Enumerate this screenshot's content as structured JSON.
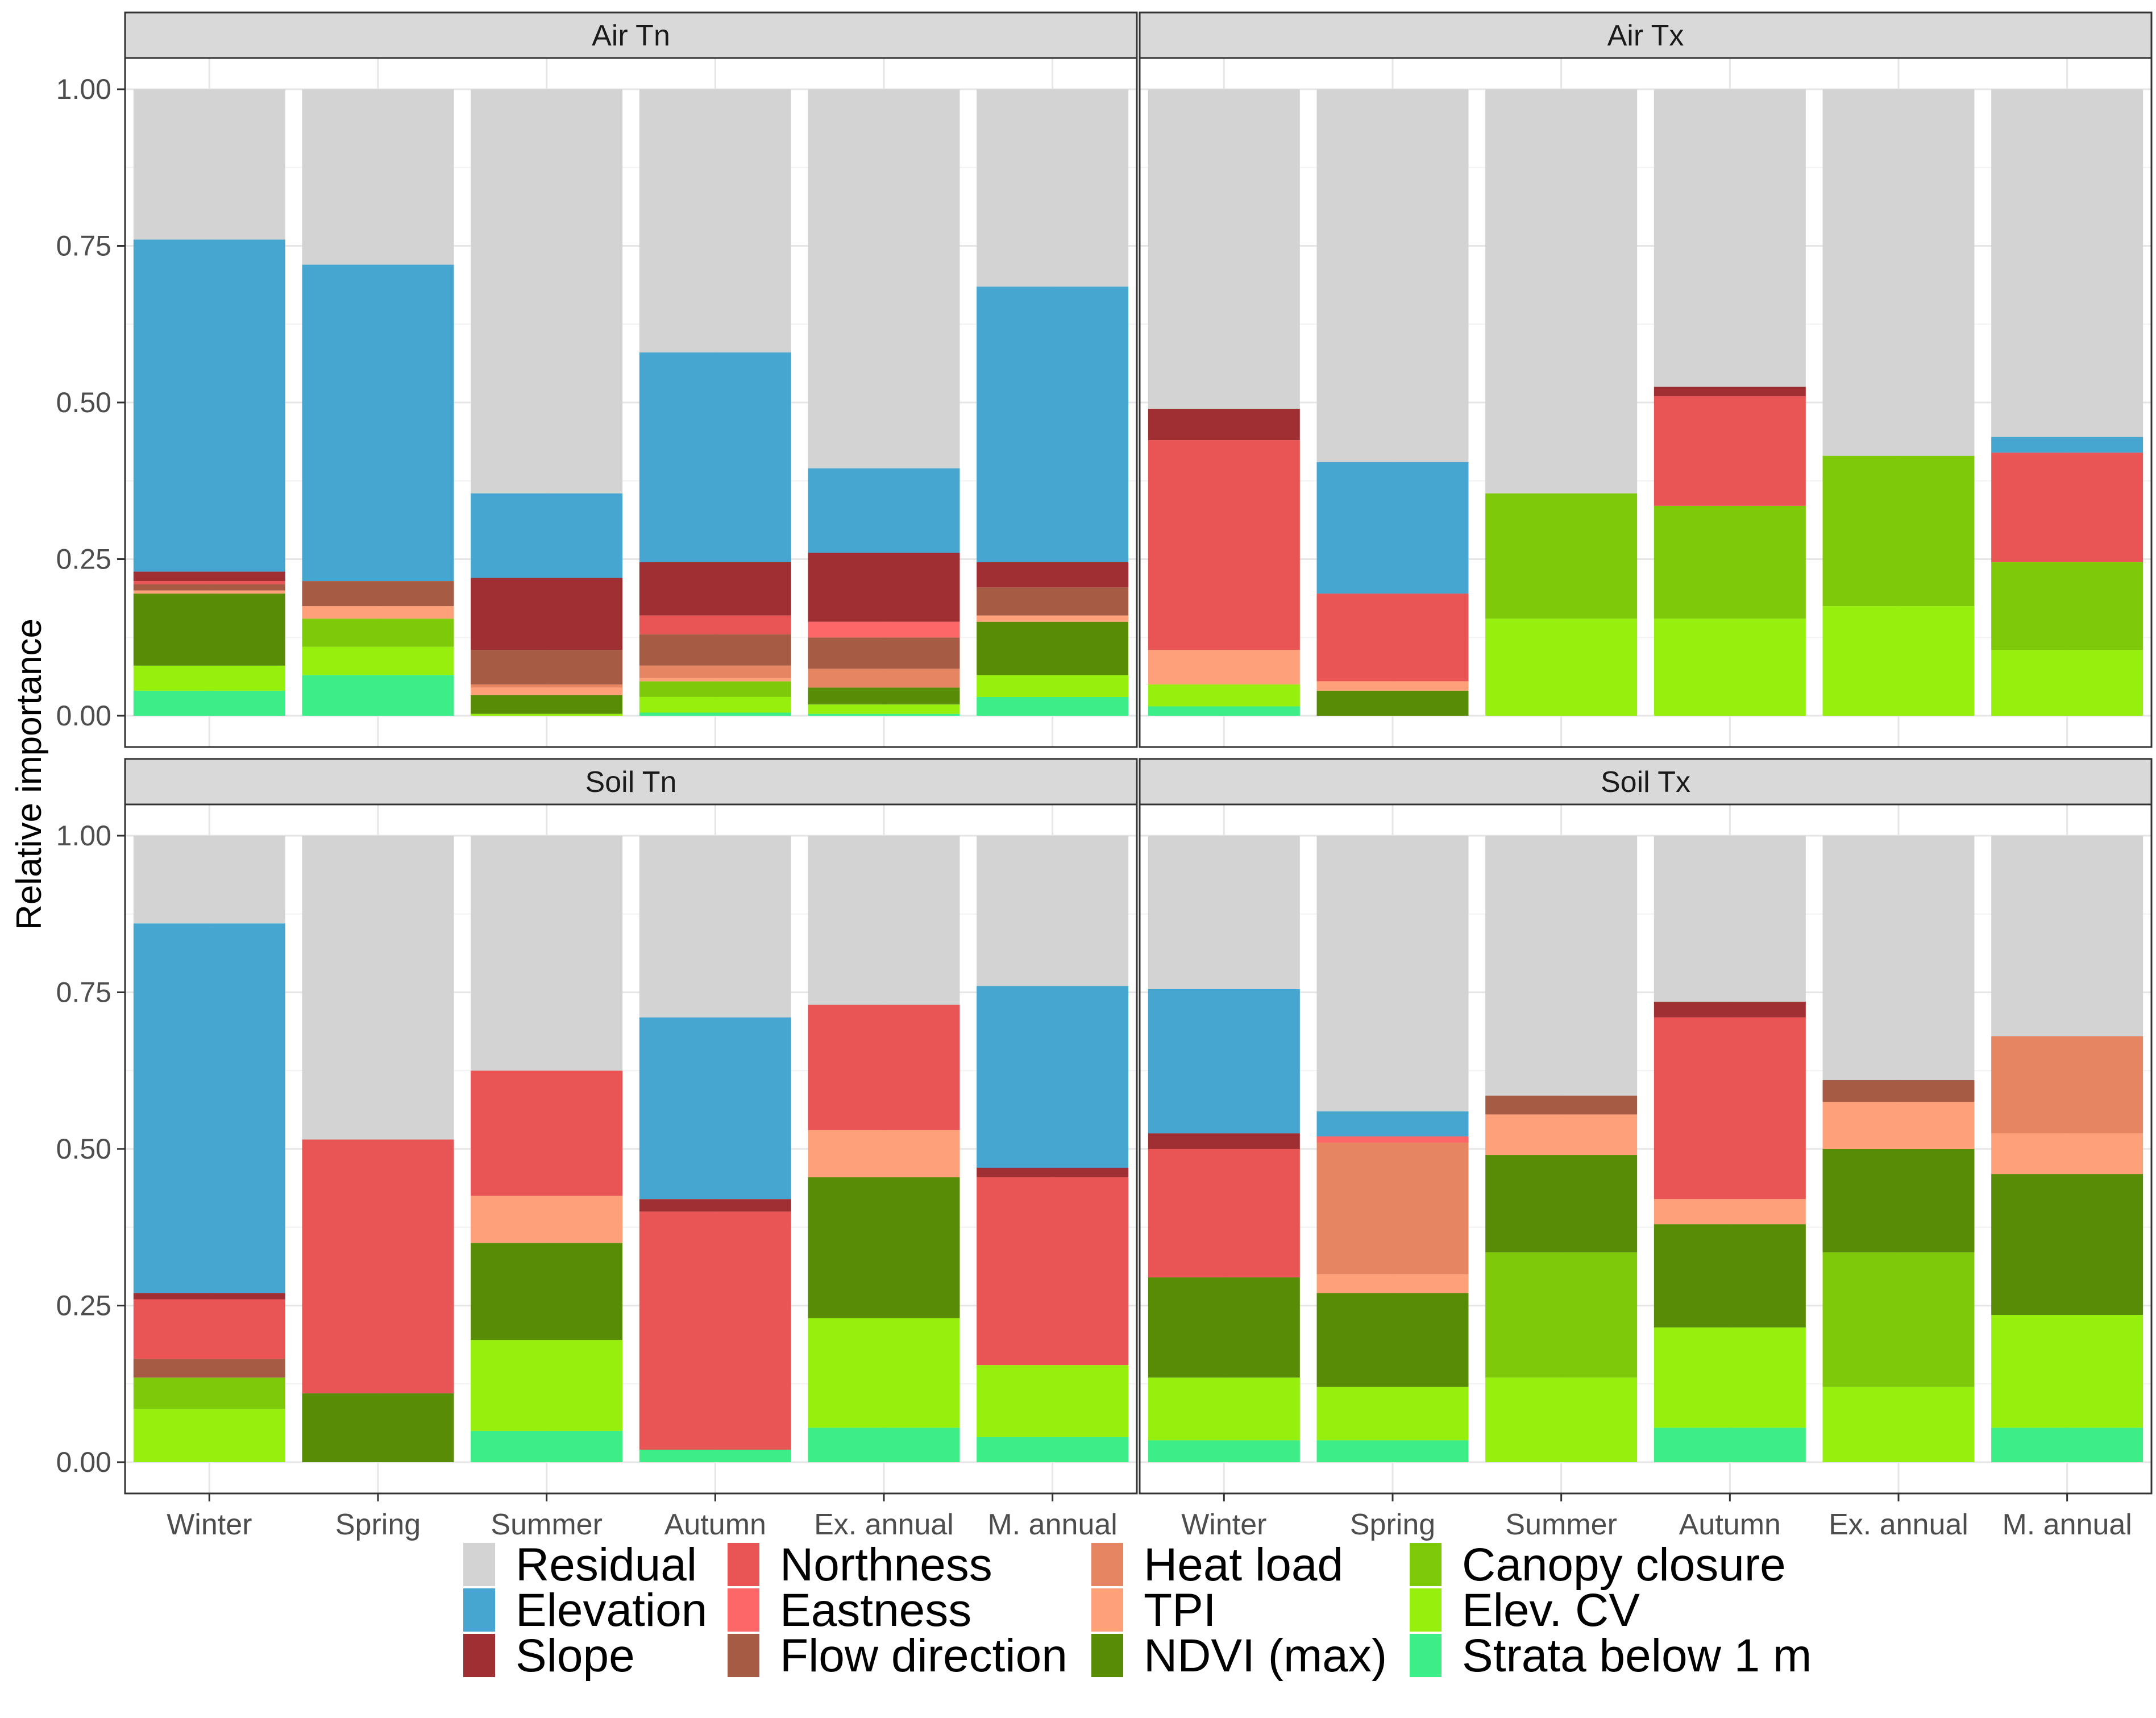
{
  "chart_data": {
    "type": "stacked-bar",
    "ylabel": "Relative importance",
    "ylim": [
      0,
      1
    ],
    "yticks": [
      "0.00",
      "0.25",
      "0.50",
      "0.75",
      "1.00"
    ],
    "categories": [
      "Winter",
      "Spring",
      "Summer",
      "Autumn",
      "Ex. annual",
      "M. annual"
    ],
    "predictors": [
      {
        "name": "Residual",
        "color": "#d3d3d3"
      },
      {
        "name": "Elevation",
        "color": "#47a6d0"
      },
      {
        "name": "Slope",
        "color": "#a02f34"
      },
      {
        "name": "Northness",
        "color": "#e95454"
      },
      {
        "name": "Eastness",
        "color": "#fe6767"
      },
      {
        "name": "Flow direction",
        "color": "#a65b44"
      },
      {
        "name": "Heat load",
        "color": "#e58561"
      },
      {
        "name": "TPI",
        "color": "#fea07a"
      },
      {
        "name": "NDVI (max)",
        "color": "#588c06"
      },
      {
        "name": "Canopy closure",
        "color": "#7ec90a"
      },
      {
        "name": "Elev. CV",
        "color": "#97ef0e"
      },
      {
        "name": "Strata below 1 m",
        "color": "#3ded88"
      }
    ],
    "stack_order": [
      "Strata below 1 m",
      "Elev. CV",
      "Canopy closure",
      "NDVI (max)",
      "TPI",
      "Heat load",
      "Flow direction",
      "Eastness",
      "Northness",
      "Slope",
      "Elevation",
      "Residual"
    ],
    "panels": [
      {
        "title": "Air Tn",
        "bars": [
          {
            "Strata below 1 m": 0.04,
            "Elev. CV": 0.04,
            "Canopy closure": 0,
            "NDVI (max)": 0.115,
            "TPI": 0.005,
            "Heat load": 0,
            "Flow direction": 0.01,
            "Eastness": 0,
            "Northness": 0.005,
            "Slope": 0.015,
            "Elevation": 0.53,
            "Residual": 0.24
          },
          {
            "Strata below 1 m": 0.065,
            "Elev. CV": 0.045,
            "Canopy closure": 0.045,
            "NDVI (max)": 0,
            "TPI": 0.02,
            "Heat load": 0,
            "Flow direction": 0.04,
            "Eastness": 0,
            "Northness": 0,
            "Slope": 0,
            "Elevation": 0.505,
            "Residual": 0.28
          },
          {
            "Strata below 1 m": 0,
            "Elev. CV": 0.003,
            "Canopy closure": 0,
            "NDVI (max)": 0.03,
            "TPI": 0.012,
            "Heat load": 0.005,
            "Flow direction": 0.055,
            "Eastness": 0,
            "Northness": 0,
            "Slope": 0.115,
            "Elevation": 0.135,
            "Residual": 0.645
          },
          {
            "Strata below 1 m": 0.005,
            "Elev. CV": 0.025,
            "Canopy closure": 0.025,
            "NDVI (max)": 0,
            "TPI": 0.005,
            "Heat load": 0.02,
            "Flow direction": 0.05,
            "Eastness": 0,
            "Northness": 0.03,
            "Slope": 0.085,
            "Elevation": 0.335,
            "Residual": 0.42
          },
          {
            "Strata below 1 m": 0.003,
            "Elev. CV": 0.015,
            "Canopy closure": 0,
            "NDVI (max)": 0.027,
            "TPI": 0,
            "Heat load": 0.03,
            "Flow direction": 0.05,
            "Eastness": 0.025,
            "Northness": 0,
            "Slope": 0.11,
            "Elevation": 0.135,
            "Residual": 0.605
          },
          {
            "Strata below 1 m": 0.03,
            "Elev. CV": 0.035,
            "Canopy closure": 0,
            "NDVI (max)": 0.085,
            "TPI": 0.01,
            "Heat load": 0,
            "Flow direction": 0.045,
            "Eastness": 0,
            "Northness": 0,
            "Slope": 0.04,
            "Elevation": 0.44,
            "Residual": 0.315
          }
        ]
      },
      {
        "title": "Air Tx",
        "bars": [
          {
            "Strata below 1 m": 0.015,
            "Elev. CV": 0.035,
            "Canopy closure": 0,
            "NDVI (max)": 0,
            "TPI": 0.055,
            "Heat load": 0,
            "Flow direction": 0,
            "Eastness": 0,
            "Northness": 0.335,
            "Slope": 0.05,
            "Elevation": 0,
            "Residual": 0.51
          },
          {
            "Strata below 1 m": 0,
            "Elev. CV": 0,
            "Canopy closure": 0,
            "NDVI (max)": 0.04,
            "TPI": 0.015,
            "Heat load": 0,
            "Flow direction": 0,
            "Eastness": 0,
            "Northness": 0.14,
            "Slope": 0,
            "Elevation": 0.21,
            "Residual": 0.595
          },
          {
            "Strata below 1 m": 0,
            "Elev. CV": 0.155,
            "Canopy closure": 0.2,
            "NDVI (max)": 0,
            "TPI": 0,
            "Heat load": 0,
            "Flow direction": 0,
            "Eastness": 0,
            "Northness": 0,
            "Slope": 0,
            "Elevation": 0,
            "Residual": 0.645
          },
          {
            "Strata below 1 m": 0,
            "Elev. CV": 0.155,
            "Canopy closure": 0.18,
            "NDVI (max)": 0,
            "TPI": 0,
            "Heat load": 0,
            "Flow direction": 0,
            "Eastness": 0,
            "Northness": 0.175,
            "Slope": 0.015,
            "Elevation": 0,
            "Residual": 0.475
          },
          {
            "Strata below 1 m": 0,
            "Elev. CV": 0.175,
            "Canopy closure": 0.24,
            "NDVI (max)": 0,
            "TPI": 0,
            "Heat load": 0,
            "Flow direction": 0,
            "Eastness": 0,
            "Northness": 0,
            "Slope": 0,
            "Elevation": 0,
            "Residual": 0.585
          },
          {
            "Strata below 1 m": 0,
            "Elev. CV": 0.105,
            "Canopy closure": 0.14,
            "NDVI (max)": 0,
            "TPI": 0,
            "Heat load": 0,
            "Flow direction": 0,
            "Eastness": 0,
            "Northness": 0.175,
            "Slope": 0,
            "Elevation": 0.025,
            "Residual": 0.555
          }
        ]
      },
      {
        "title": "Soil Tn",
        "bars": [
          {
            "Strata below 1 m": 0,
            "Elev. CV": 0.085,
            "Canopy closure": 0.05,
            "NDVI (max)": 0,
            "TPI": 0,
            "Heat load": 0,
            "Flow direction": 0.03,
            "Eastness": 0,
            "Northness": 0.095,
            "Slope": 0.01,
            "Elevation": 0.59,
            "Residual": 0.14
          },
          {
            "Strata below 1 m": 0,
            "Elev. CV": 0,
            "Canopy closure": 0,
            "NDVI (max)": 0.11,
            "TPI": 0,
            "Heat load": 0,
            "Flow direction": 0,
            "Eastness": 0,
            "Northness": 0.405,
            "Slope": 0,
            "Elevation": 0,
            "Residual": 0.485
          },
          {
            "Strata below 1 m": 0.05,
            "Elev. CV": 0.145,
            "Canopy closure": 0,
            "NDVI (max)": 0.155,
            "TPI": 0.075,
            "Heat load": 0,
            "Flow direction": 0,
            "Eastness": 0,
            "Northness": 0.2,
            "Slope": 0,
            "Elevation": 0,
            "Residual": 0.375
          },
          {
            "Strata below 1 m": 0.02,
            "Elev. CV": 0,
            "Canopy closure": 0,
            "NDVI (max)": 0,
            "TPI": 0,
            "Heat load": 0,
            "Flow direction": 0,
            "Eastness": 0,
            "Northness": 0.38,
            "Slope": 0.02,
            "Elevation": 0.29,
            "Residual": 0.29
          },
          {
            "Strata below 1 m": 0.055,
            "Elev. CV": 0.175,
            "Canopy closure": 0,
            "NDVI (max)": 0.225,
            "TPI": 0.075,
            "Heat load": 0,
            "Flow direction": 0,
            "Eastness": 0,
            "Northness": 0.2,
            "Slope": 0,
            "Elevation": 0,
            "Residual": 0.27
          },
          {
            "Strata below 1 m": 0.04,
            "Elev. CV": 0.115,
            "Canopy closure": 0,
            "NDVI (max)": 0,
            "TPI": 0,
            "Heat load": 0,
            "Flow direction": 0,
            "Eastness": 0,
            "Northness": 0.3,
            "Slope": 0.015,
            "Elevation": 0.29,
            "Residual": 0.24
          }
        ]
      },
      {
        "title": "Soil Tx",
        "bars": [
          {
            "Strata below 1 m": 0.035,
            "Elev. CV": 0.1,
            "Canopy closure": 0,
            "NDVI (max)": 0.16,
            "TPI": 0,
            "Heat load": 0,
            "Flow direction": 0,
            "Eastness": 0,
            "Northness": 0.205,
            "Slope": 0.025,
            "Elevation": 0.23,
            "Residual": 0.245
          },
          {
            "Strata below 1 m": 0.035,
            "Elev. CV": 0.085,
            "Canopy closure": 0,
            "NDVI (max)": 0.15,
            "TPI": 0.03,
            "Heat load": 0.21,
            "Flow direction": 0,
            "Eastness": 0.01,
            "Northness": 0,
            "Slope": 0,
            "Elevation": 0.04,
            "Residual": 0.44
          },
          {
            "Strata below 1 m": 0,
            "Elev. CV": 0.135,
            "Canopy closure": 0.2,
            "NDVI (max)": 0.155,
            "TPI": 0.065,
            "Heat load": 0,
            "Flow direction": 0.03,
            "Eastness": 0,
            "Northness": 0,
            "Slope": 0,
            "Elevation": 0,
            "Residual": 0.415
          },
          {
            "Strata below 1 m": 0.055,
            "Elev. CV": 0.16,
            "Canopy closure": 0,
            "NDVI (max)": 0.165,
            "TPI": 0.04,
            "Heat load": 0,
            "Flow direction": 0,
            "Eastness": 0,
            "Northness": 0.29,
            "Slope": 0.025,
            "Elevation": 0,
            "Residual": 0.265
          },
          {
            "Strata below 1 m": 0,
            "Elev. CV": 0.12,
            "Canopy closure": 0.215,
            "NDVI (max)": 0.165,
            "TPI": 0.075,
            "Heat load": 0,
            "Flow direction": 0.035,
            "Eastness": 0,
            "Northness": 0,
            "Slope": 0,
            "Elevation": 0,
            "Residual": 0.39
          },
          {
            "Strata below 1 m": 0.055,
            "Elev. CV": 0.18,
            "Canopy closure": 0,
            "NDVI (max)": 0.225,
            "TPI": 0.065,
            "Heat load": 0.155,
            "Flow direction": 0,
            "Eastness": 0,
            "Northness": 0,
            "Slope": 0,
            "Elevation": 0,
            "Residual": 0.32
          }
        ]
      }
    ]
  }
}
